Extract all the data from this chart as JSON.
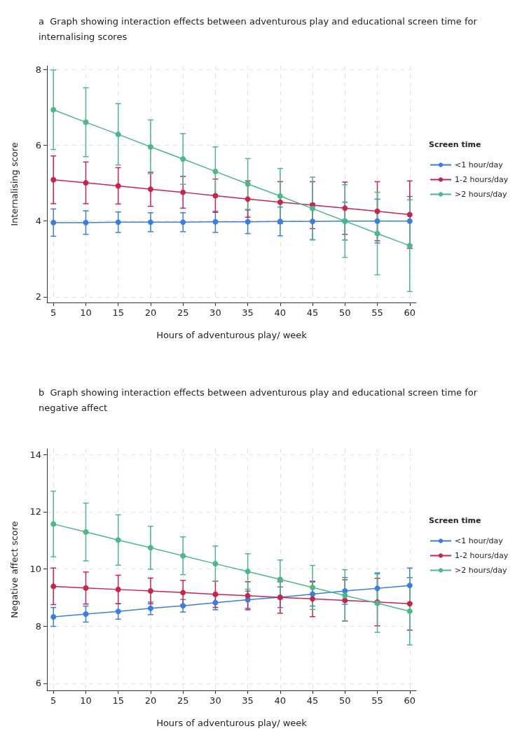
{
  "chart_data": [
    {
      "type": "line",
      "title": "a  Graph showing interaction effects between adventurous play and educational screen time for internalising scores",
      "xlabel": "Hours of adventurous play/ week",
      "ylabel": "Internalising score",
      "legend_title": "Screen time",
      "x": [
        5,
        10,
        15,
        20,
        25,
        30,
        35,
        40,
        45,
        50,
        55,
        60
      ],
      "xlim": [
        4,
        61
      ],
      "xticks": [
        5,
        10,
        15,
        20,
        25,
        30,
        35,
        40,
        45,
        50,
        55,
        60
      ],
      "ylim": [
        1.85,
        8.1
      ],
      "yticks": [
        2,
        4,
        6,
        8
      ],
      "grid": true,
      "legend": "right",
      "marker": "circle",
      "series": [
        {
          "name": "<1 hour/day",
          "color": "#3a7fe0",
          "values": [
            3.96,
            3.96,
            3.97,
            3.97,
            3.97,
            3.98,
            3.98,
            3.99,
            3.99,
            4.0,
            4.0,
            4.0
          ],
          "errors": [
            0.36,
            0.31,
            0.27,
            0.25,
            0.25,
            0.28,
            0.31,
            0.38,
            0.48,
            0.5,
            0.58,
            0.65
          ]
        },
        {
          "name": "1-2 hours/day",
          "color": "#c8254e",
          "values": [
            5.09,
            5.01,
            4.93,
            4.84,
            4.76,
            4.67,
            4.58,
            4.5,
            4.42,
            4.34,
            4.26,
            4.17
          ],
          "errors": [
            0.63,
            0.55,
            0.48,
            0.45,
            0.42,
            0.44,
            0.48,
            0.54,
            0.62,
            0.69,
            0.78,
            0.89
          ]
        },
        {
          "name": ">2 hours/day",
          "color": "#4bb88a",
          "values": [
            6.94,
            6.61,
            6.29,
            5.96,
            5.64,
            5.31,
            4.98,
            4.66,
            4.33,
            4.0,
            3.67,
            3.35
          ],
          "errors": [
            1.05,
            0.91,
            0.81,
            0.71,
            0.67,
            0.65,
            0.67,
            0.73,
            0.83,
            0.96,
            1.09,
            1.21
          ]
        }
      ]
    },
    {
      "type": "line",
      "title": "b  Graph showing interaction effects between adventurous play and educational screen time for negative affect",
      "xlabel": "Hours of adventurous play/ week",
      "ylabel": "Negative affect score",
      "legend_title": "Screen time",
      "x": [
        5,
        10,
        15,
        20,
        25,
        30,
        35,
        40,
        45,
        50,
        55,
        60
      ],
      "xlim": [
        4,
        61
      ],
      "xticks": [
        5,
        10,
        15,
        20,
        25,
        30,
        35,
        40,
        45,
        50,
        55,
        60
      ],
      "ylim": [
        5.75,
        14.2
      ],
      "yticks": [
        6,
        8,
        10,
        12,
        14
      ],
      "grid": true,
      "legend": "right",
      "marker": "circle",
      "series": [
        {
          "name": "<1 hour/day",
          "color": "#3a7fe0",
          "values": [
            8.32,
            8.42,
            8.51,
            8.62,
            8.71,
            8.82,
            8.92,
            9.01,
            9.12,
            9.23,
            9.32,
            9.42
          ],
          "errors": [
            0.33,
            0.28,
            0.27,
            0.22,
            0.22,
            0.25,
            0.3,
            0.36,
            0.42,
            0.47,
            0.54,
            0.61
          ]
        },
        {
          "name": "1-2 hours/day",
          "color": "#c8254e",
          "values": [
            9.39,
            9.33,
            9.28,
            9.23,
            9.17,
            9.11,
            9.06,
            9.0,
            8.95,
            8.9,
            8.84,
            8.78
          ],
          "errors": [
            0.64,
            0.56,
            0.5,
            0.45,
            0.43,
            0.46,
            0.49,
            0.55,
            0.62,
            0.72,
            0.83,
            0.92
          ]
        },
        {
          "name": ">2 hours/day",
          "color": "#4bb88a",
          "values": [
            11.57,
            11.29,
            11.01,
            10.74,
            10.46,
            10.18,
            9.91,
            9.63,
            9.35,
            9.07,
            8.8,
            8.52
          ],
          "errors": [
            1.15,
            1.01,
            0.88,
            0.75,
            0.66,
            0.62,
            0.62,
            0.68,
            0.77,
            0.9,
            1.02,
            1.18
          ]
        }
      ]
    }
  ]
}
